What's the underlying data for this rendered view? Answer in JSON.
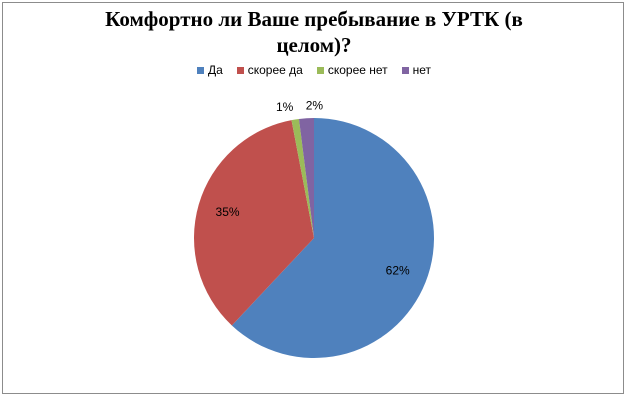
{
  "chart_data": {
    "type": "pie",
    "title": "Комфортно ли Ваше пребывание в УРТК (в целом)?",
    "categories": [
      "Да",
      "скорее да",
      "скорее нет",
      "нет"
    ],
    "values": [
      62,
      35,
      1,
      2
    ],
    "value_labels": [
      "62%",
      "35%",
      "1%",
      "2%"
    ],
    "colors": [
      "#4f81bd",
      "#c0504d",
      "#9bbb59",
      "#8064a2"
    ],
    "legend": "top"
  }
}
